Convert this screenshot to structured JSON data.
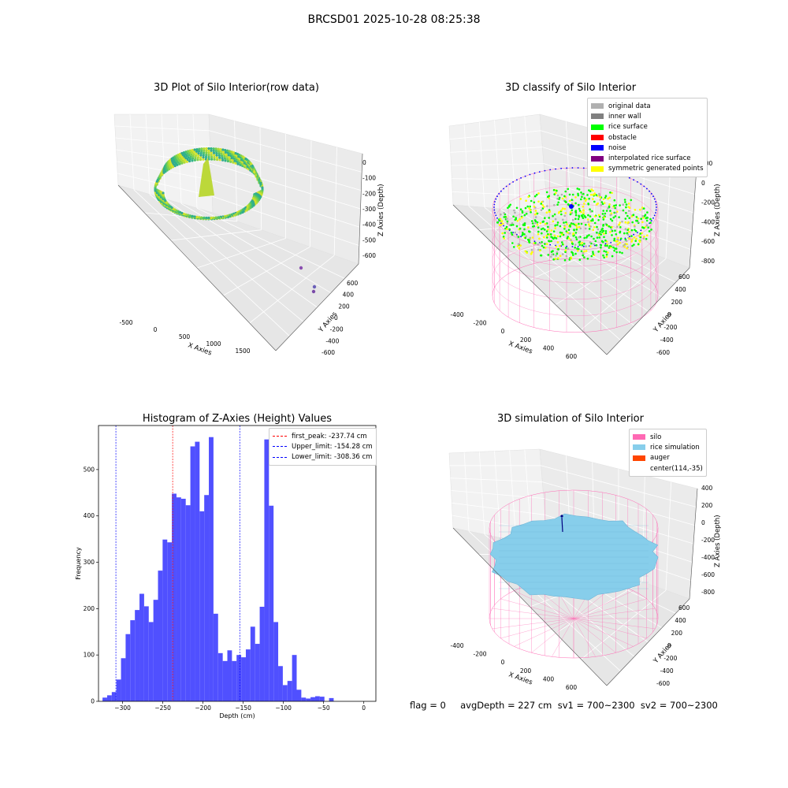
{
  "figure": {
    "suptitle": "BRCSD01 2025-10-28 08:25:38",
    "footer": "flag = 0     avgDepth = 227 cm  sv1 = 700~2300  sv2 = 700~2300"
  },
  "plot_raw": {
    "title": "3D Plot of Silo Interior(row data)",
    "xlabel": "X Axies",
    "ylabel": "Y Axies",
    "zlabel": "Z Axies (Depth)",
    "x_ticks": [
      "-500",
      "0",
      "500",
      "1000",
      "1500"
    ],
    "y_ticks": [
      "-600",
      "-400",
      "-200",
      "0",
      "200",
      "400",
      "600"
    ],
    "z_ticks": [
      "0",
      "-100",
      "-200",
      "-300",
      "-400",
      "-500",
      "-600"
    ]
  },
  "plot_classify": {
    "title": "3D classify of Silo Interior",
    "xlabel": "X Axies",
    "ylabel": "Y Axies",
    "zlabel": "Z Axies (Depth)",
    "x_ticks": [
      "-400",
      "-200",
      "0",
      "200",
      "400",
      "600"
    ],
    "y_ticks": [
      "-600",
      "-400",
      "-200",
      "0",
      "200",
      "400",
      "600"
    ],
    "z_ticks": [
      "200",
      "0",
      "-200",
      "-400",
      "-600",
      "-800"
    ],
    "legend": [
      {
        "label": "original data",
        "color": "#b0b0b0"
      },
      {
        "label": "inner wall",
        "color": "#808080"
      },
      {
        "label": "rice surface",
        "color": "#00ff00"
      },
      {
        "label": "obstacle",
        "color": "#ff0000"
      },
      {
        "label": "noise",
        "color": "#0000ff"
      },
      {
        "label": "interpolated rice surface",
        "color": "#800080"
      },
      {
        "label": "symmetric generated points",
        "color": "#ffff00"
      }
    ]
  },
  "plot_sim": {
    "title": "3D simulation of Silo Interior",
    "xlabel": "X Axies",
    "ylabel": "Y Axies",
    "zlabel": "Z Axies (Depth)",
    "x_ticks": [
      "-400",
      "-200",
      "0",
      "200",
      "400",
      "600"
    ],
    "y_ticks": [
      "-600",
      "-400",
      "-200",
      "0",
      "200",
      "400",
      "600"
    ],
    "z_ticks": [
      "400",
      "200",
      "0",
      "-200",
      "-400",
      "-600",
      "-800"
    ],
    "legend": [
      {
        "label": "silo",
        "color": "#ff69b4"
      },
      {
        "label": "rice simulation",
        "color": "#87ceeb"
      },
      {
        "label": "auger",
        "color": "#ff4500"
      },
      {
        "label": "center(114,-35)",
        "color": ""
      }
    ]
  },
  "chart_data": {
    "type": "bar",
    "title": "Histogram of Z-Axies (Height) Values",
    "xlabel": "Depth (cm)",
    "ylabel": "Frequency",
    "xlim": [
      -330,
      15
    ],
    "ylim": [
      0,
      595
    ],
    "x_ticks": [
      -300,
      -250,
      -200,
      -150,
      -100,
      -50,
      0
    ],
    "y_ticks": [
      0,
      100,
      200,
      300,
      400,
      500
    ],
    "bin_width": 5.75,
    "bin_start": -325,
    "values": [
      8,
      13,
      20,
      47,
      93,
      145,
      175,
      197,
      232,
      205,
      171,
      219,
      282,
      349,
      343,
      448,
      440,
      437,
      423,
      550,
      560,
      410,
      445,
      570,
      189,
      104,
      87,
      110,
      87,
      100,
      95,
      112,
      161,
      124,
      204,
      565,
      422,
      171,
      76,
      35,
      44,
      100,
      25,
      8,
      6,
      9,
      11,
      10,
      0,
      7
    ],
    "bar_color": "#5050ff",
    "grid": false,
    "legend_position": "top-right",
    "vlines": [
      {
        "label": "first_peak: -237.74 cm",
        "x": -237.74,
        "color": "#ff0000"
      },
      {
        "label": "Upper_limit: -154.28 cm",
        "x": -154.28,
        "color": "#0000ff"
      },
      {
        "label": "Lower_limit: -308.36 cm",
        "x": -308.36,
        "color": "#0000ff"
      }
    ]
  }
}
